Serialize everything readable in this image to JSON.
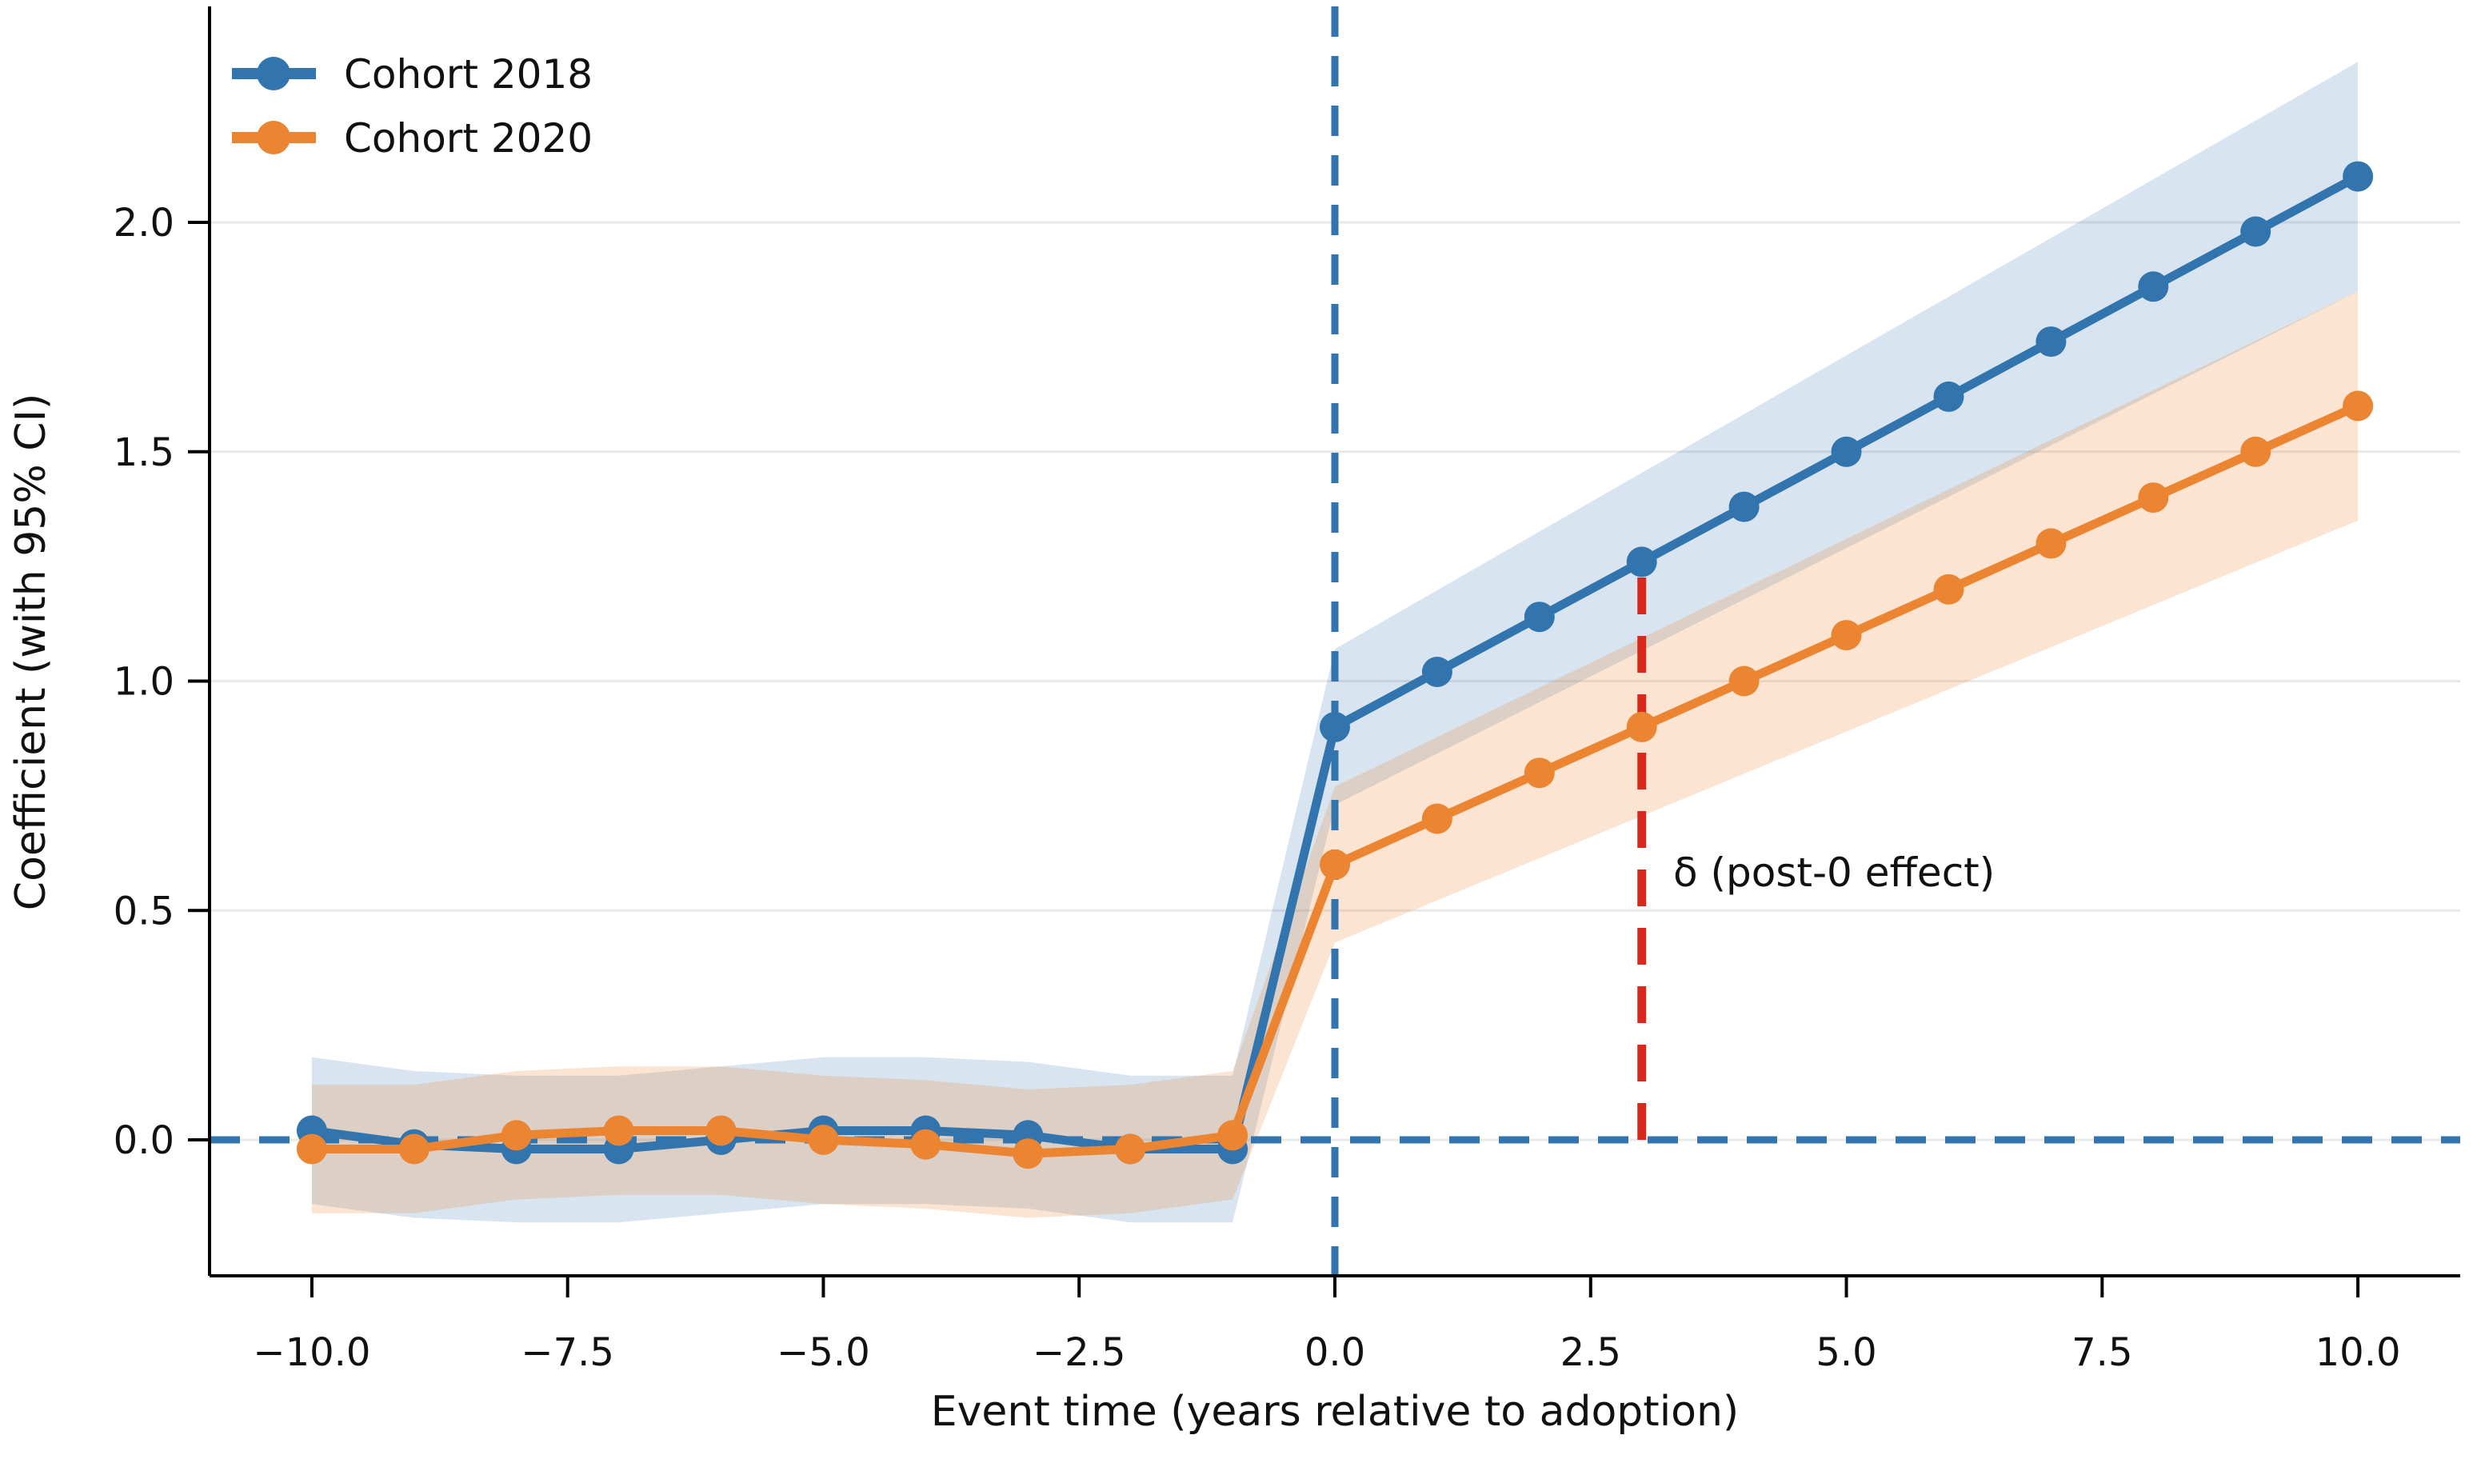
{
  "chart_data": {
    "type": "line",
    "title": "",
    "xlabel": "Event time (years relative to adoption)",
    "ylabel": "Coefficient (with 95% CI)",
    "xlim": [
      -11,
      11
    ],
    "ylim": [
      -0.3,
      2.47
    ],
    "grid": "horizontal",
    "legend": {
      "position": "upper-left",
      "frame": false,
      "entries": [
        "Cohort 2018",
        "Cohort 2020"
      ]
    },
    "x_ticks": {
      "values": [
        -10,
        -7.5,
        -5,
        -2.5,
        0,
        2.5,
        5,
        7.5,
        10
      ],
      "labels": [
        "−10.0",
        "−7.5",
        "−5.0",
        "−2.5",
        "0.0",
        "2.5",
        "5.0",
        "7.5",
        "10.0"
      ]
    },
    "y_ticks": {
      "values": [
        0,
        0.5,
        1,
        1.5,
        2
      ],
      "labels": [
        "0.0",
        "0.5",
        "1.0",
        "1.5",
        "2.0"
      ]
    },
    "x": [
      -10,
      -9,
      -8,
      -7,
      -6,
      -5,
      -4,
      -3,
      -2,
      -1,
      0,
      1,
      2,
      3,
      4,
      5,
      6,
      7,
      8,
      9,
      10
    ],
    "series": [
      {
        "name": "Cohort 2018",
        "color": "#3274ad",
        "band_fill": "rgba(50, 116, 173, 0.19)",
        "values": [
          0.02,
          -0.01,
          -0.02,
          -0.02,
          0.0,
          0.02,
          0.02,
          0.01,
          -0.02,
          -0.02,
          0.9,
          1.02,
          1.14,
          1.26,
          1.38,
          1.5,
          1.62,
          1.74,
          1.86,
          1.98,
          2.1
        ],
        "ci_half_width": [
          0.16,
          0.16,
          0.16,
          0.16,
          0.16,
          0.16,
          0.16,
          0.16,
          0.16,
          0.16,
          0.17,
          0.178,
          0.186,
          0.194,
          0.202,
          0.21,
          0.218,
          0.226,
          0.234,
          0.242,
          0.25
        ]
      },
      {
        "name": "Cohort 2020",
        "color": "#ec8532",
        "band_fill": "rgba(236, 133, 50, 0.22)",
        "values": [
          -0.02,
          -0.02,
          0.01,
          0.02,
          0.02,
          0.0,
          -0.01,
          -0.03,
          -0.02,
          0.01,
          0.6,
          0.7,
          0.8,
          0.9,
          1.0,
          1.1,
          1.2,
          1.3,
          1.4,
          1.5,
          1.6
        ],
        "ci_half_width": [
          0.14,
          0.14,
          0.14,
          0.14,
          0.14,
          0.14,
          0.14,
          0.14,
          0.14,
          0.14,
          0.17,
          0.178,
          0.186,
          0.194,
          0.202,
          0.21,
          0.218,
          0.226,
          0.234,
          0.242,
          0.25
        ]
      }
    ],
    "reference_lines": [
      {
        "orientation": "horizontal",
        "value": 0,
        "style": "dashed",
        "color": "#3274ad"
      },
      {
        "orientation": "vertical",
        "value": 0,
        "style": "dashed",
        "color": "#3274ad"
      }
    ],
    "annotation": {
      "text": "δ (post-0 effect)",
      "color": "#d9291c",
      "line_x": 3,
      "line_y_from": 0,
      "line_y_to": 1.26,
      "text_x": 3.25,
      "text_y": 0.58
    }
  }
}
